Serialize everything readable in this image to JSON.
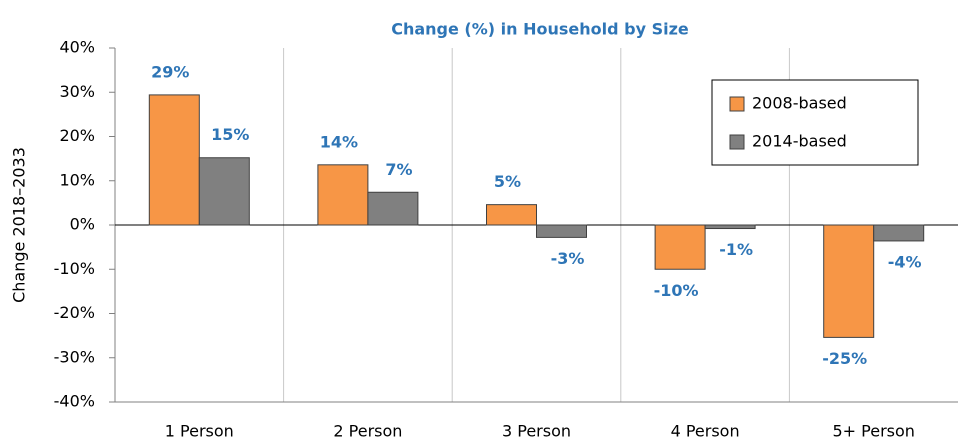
{
  "chart_data": {
    "type": "bar",
    "title": "Change (%) in Household by Size",
    "y_label": "Change 2018–2033",
    "categories": [
      "1 Person",
      "2 Person",
      "3 Person",
      "4 Person",
      "5+ Person"
    ],
    "series": [
      {
        "name": "2008-based",
        "color": "#f79646",
        "values": [
          29.4,
          13.6,
          4.6,
          -10.0,
          -25.4
        ],
        "value_labels": [
          "29%",
          "14%",
          "5%",
          "-10%",
          "-25%"
        ]
      },
      {
        "name": "2014-based",
        "color": "#808080",
        "values": [
          15.2,
          7.4,
          -2.8,
          -0.8,
          -3.6
        ],
        "value_labels": [
          "15%",
          "7%",
          "-3%",
          "-1%",
          "-4%"
        ]
      }
    ],
    "ylim": [
      -40,
      40
    ],
    "yticks": [
      {
        "value": -40,
        "label": "-40%"
      },
      {
        "value": -30,
        "label": "-30%"
      },
      {
        "value": -20,
        "label": "-20%"
      },
      {
        "value": -10,
        "label": "-10%"
      },
      {
        "value": 0,
        "label": "0%"
      },
      {
        "value": 10,
        "label": "10%"
      },
      {
        "value": 20,
        "label": "20%"
      },
      {
        "value": 30,
        "label": "30%"
      },
      {
        "value": 40,
        "label": "40%"
      }
    ],
    "vertical_grid": true,
    "legend": "upper right"
  }
}
